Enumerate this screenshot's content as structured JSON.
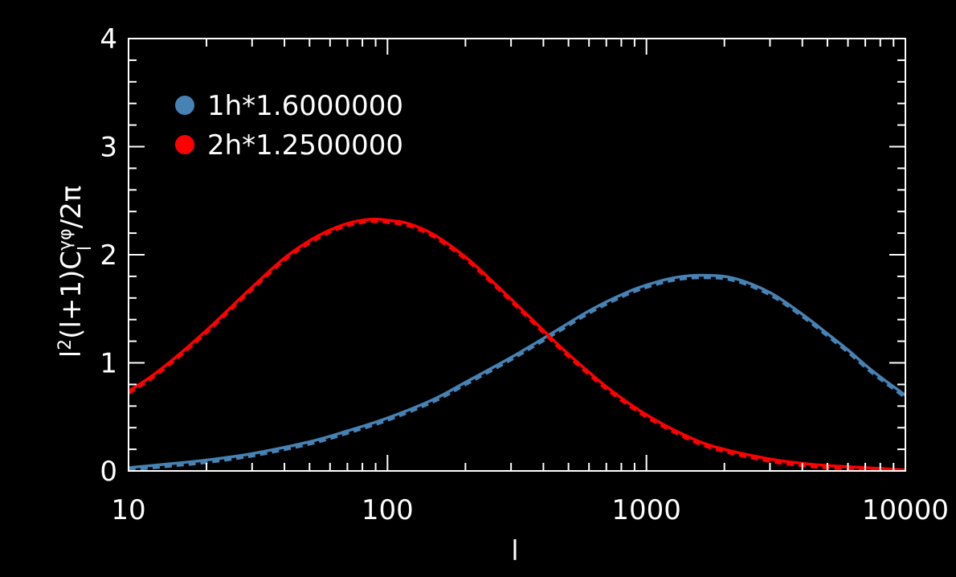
{
  "chart_data": {
    "type": "line",
    "background": "#000000",
    "axis_color": "#ffffff",
    "xlabel": "l",
    "ylabel": {
      "base": "l",
      "base_sup": "2",
      "mid": "(l+1)C",
      "sub": "l",
      "sup": "γφ",
      "tail": "/2π"
    },
    "xscale": "log",
    "xlim": [
      10,
      10000
    ],
    "ylim": [
      0,
      4
    ],
    "xticks": [
      10,
      100,
      1000,
      10000
    ],
    "xtick_labels": [
      "10",
      "100",
      "1000",
      "10000"
    ],
    "yticks": [
      0,
      1,
      2,
      3,
      4
    ],
    "ytick_labels": [
      "0",
      "1",
      "2",
      "3",
      "4"
    ],
    "grid": false,
    "legend_position": "top-left",
    "series": [
      {
        "name": "1h*1.6000000",
        "color": "#4682b4",
        "x": [
          10,
          15,
          20,
          30,
          50,
          70,
          100,
          150,
          200,
          300,
          450,
          600,
          800,
          1000,
          1300,
          1700,
          2200,
          3000,
          4000,
          5000,
          6000,
          7000,
          8000,
          10000
        ],
        "y": [
          0.03,
          0.07,
          0.1,
          0.16,
          0.27,
          0.37,
          0.49,
          0.66,
          0.82,
          1.05,
          1.3,
          1.48,
          1.63,
          1.72,
          1.79,
          1.81,
          1.78,
          1.65,
          1.45,
          1.27,
          1.12,
          0.98,
          0.87,
          0.7
        ]
      },
      {
        "name": "2h*1.2500000",
        "color": "#ff0000",
        "x": [
          10,
          12,
          15,
          20,
          25,
          30,
          40,
          50,
          60,
          70,
          80,
          90,
          100,
          120,
          150,
          200,
          250,
          300,
          400,
          500,
          700,
          1000,
          1500,
          2000,
          3000,
          4000,
          5000,
          7000,
          10000
        ],
        "y": [
          0.74,
          0.86,
          1.04,
          1.3,
          1.52,
          1.7,
          1.97,
          2.13,
          2.23,
          2.29,
          2.32,
          2.33,
          2.32,
          2.29,
          2.19,
          1.98,
          1.77,
          1.59,
          1.3,
          1.08,
          0.78,
          0.52,
          0.3,
          0.2,
          0.11,
          0.07,
          0.05,
          0.03,
          0.01
        ]
      }
    ]
  }
}
